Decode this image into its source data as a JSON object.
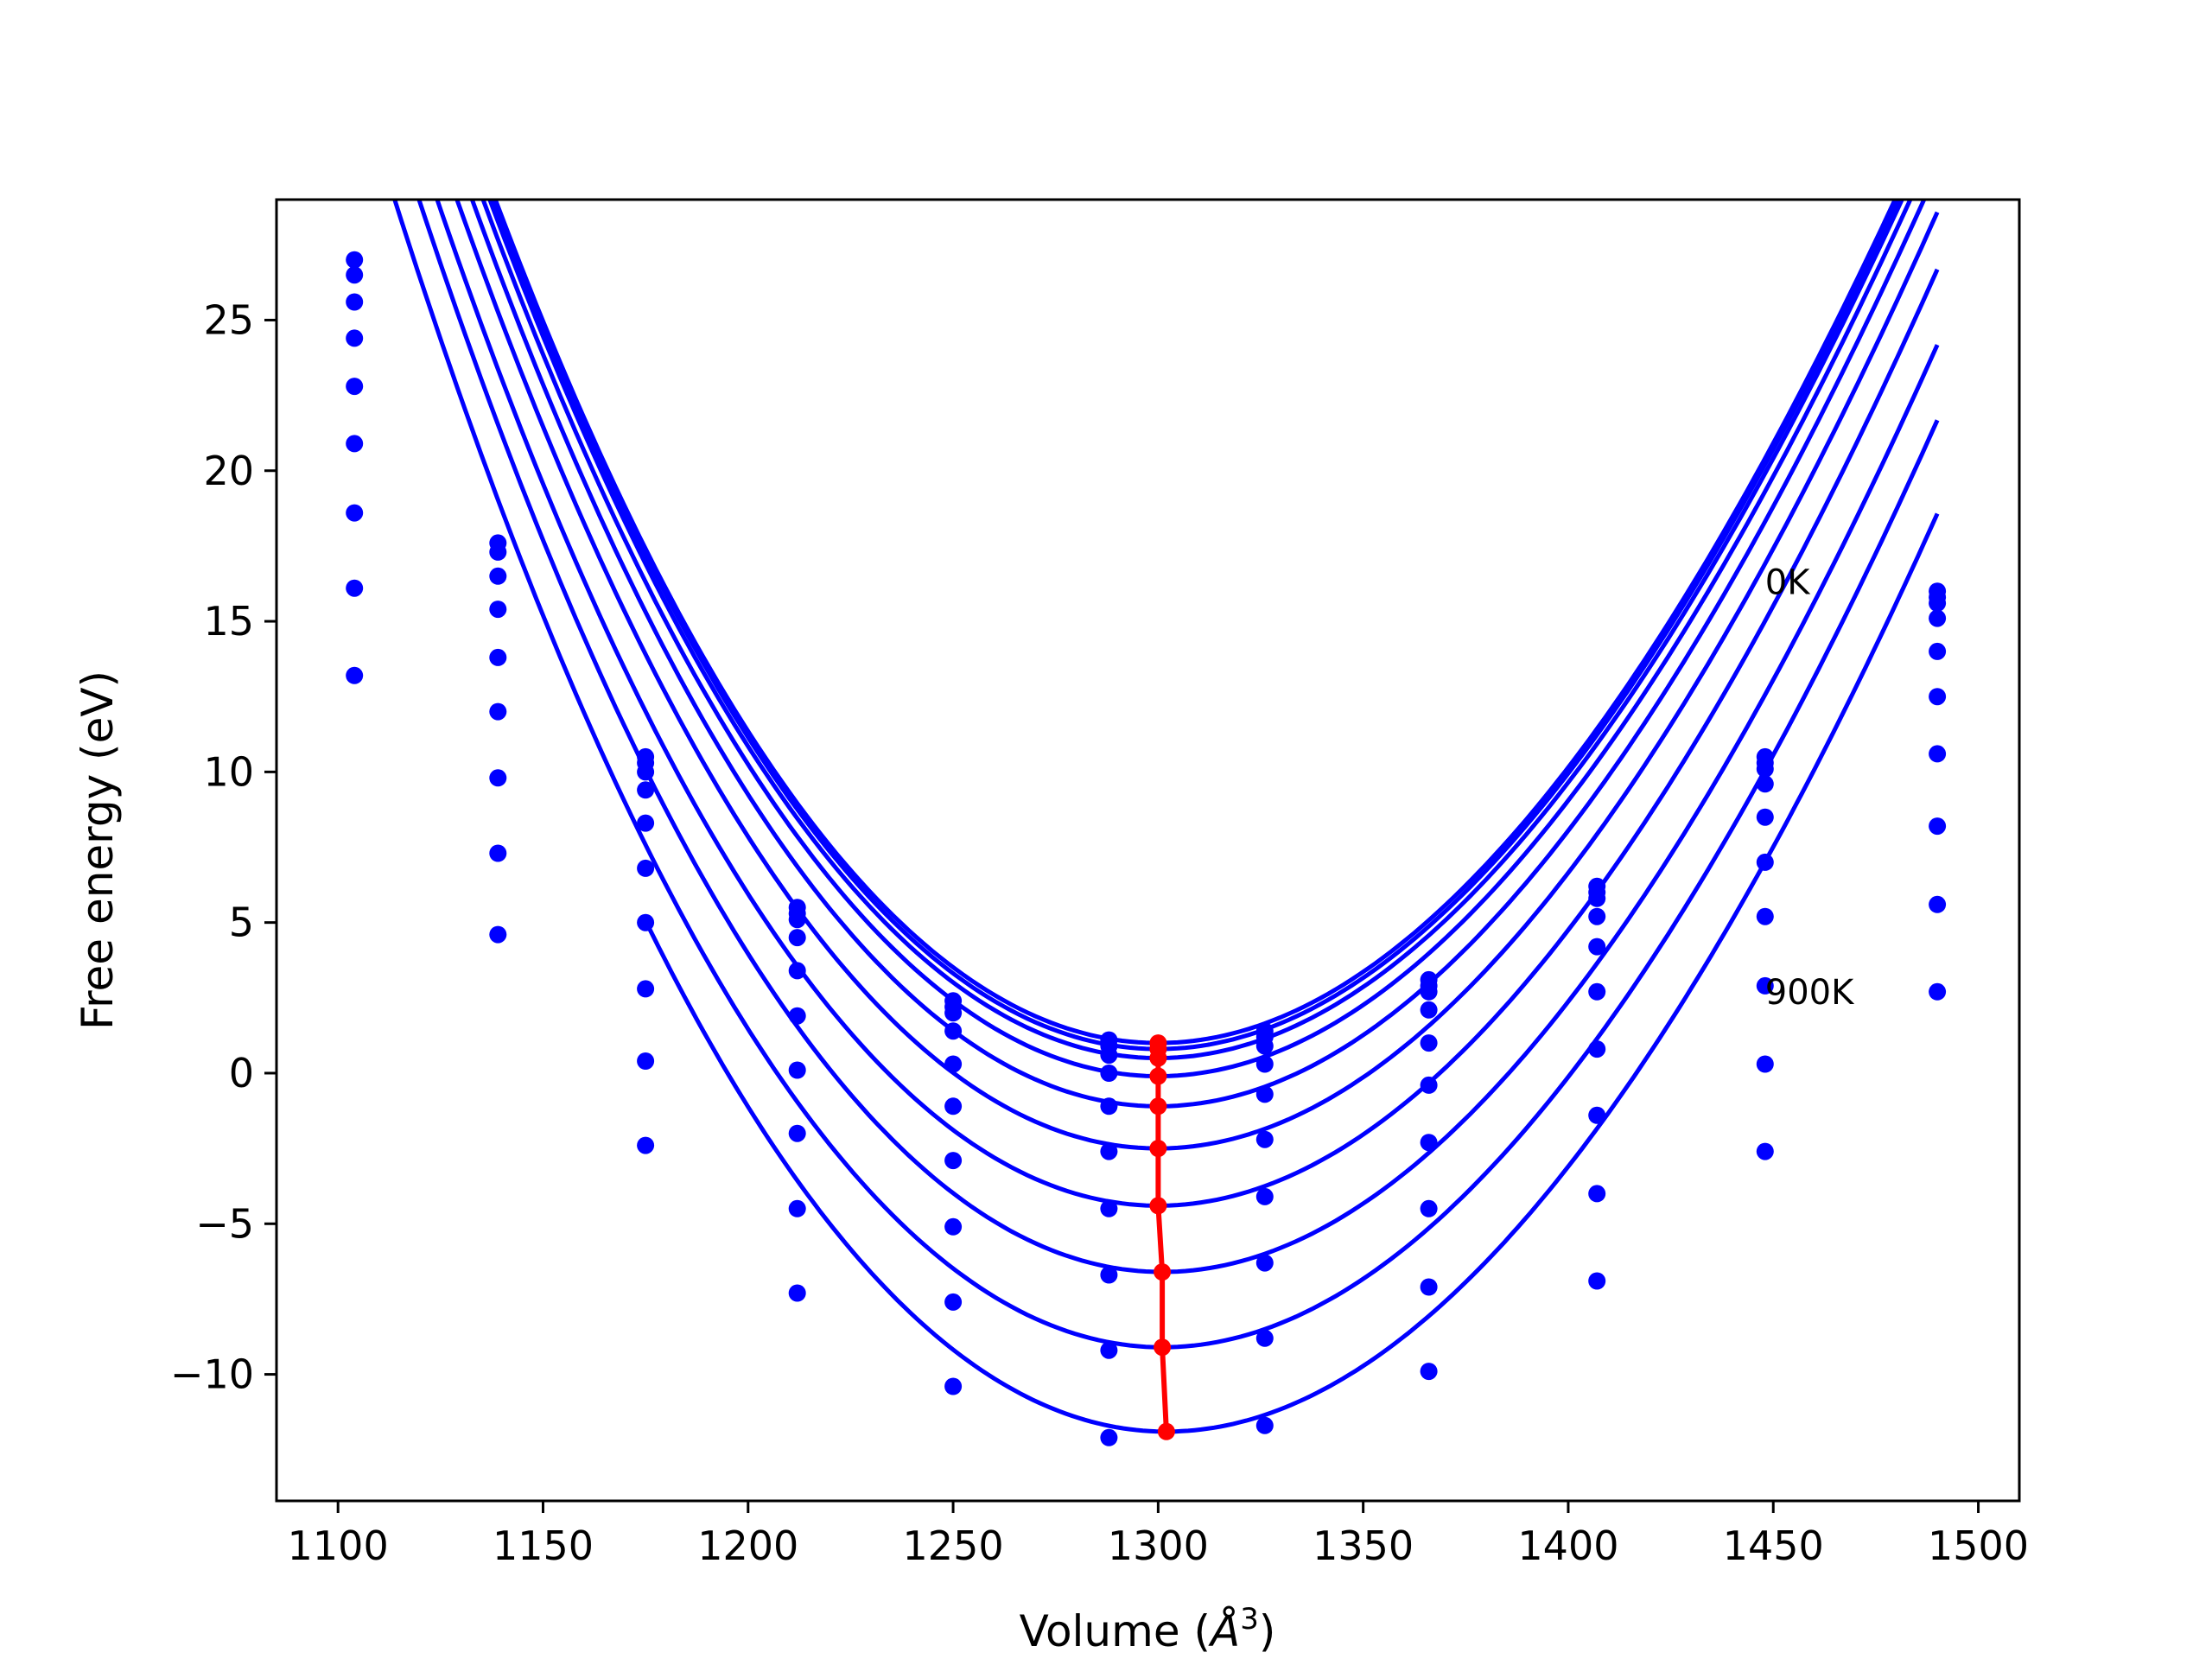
{
  "chart_data": {
    "type": "line",
    "title": "",
    "xlabel": "Volume (",
    "xlabel_symbol": "Å",
    "xlabel_sup": "3",
    "xlabel_close": ")",
    "ylabel": "Free energy (eV)",
    "xlim": [
      1085,
      1510
    ],
    "ylim": [
      -14.2,
      29.0
    ],
    "xticks": [
      1100,
      1150,
      1200,
      1250,
      1300,
      1350,
      1400,
      1450,
      1500
    ],
    "xtick_labels": [
      "1100",
      "1150",
      "1200",
      "1250",
      "1300",
      "1350",
      "1400",
      "1450",
      "1500"
    ],
    "yticks": [
      -10,
      -5,
      0,
      5,
      10,
      15,
      20,
      25
    ],
    "ytick_labels": [
      "−10",
      "−5",
      "0",
      "5",
      "10",
      "15",
      "20",
      "25"
    ],
    "grid": false,
    "legend": "none",
    "colors": {
      "curves": "#0000ff",
      "minimum_line": "#ff0000",
      "frame": "#000000"
    },
    "volumes": [
      1104,
      1139,
      1175,
      1212,
      1250,
      1288,
      1326,
      1366,
      1407,
      1448,
      1490
    ],
    "series": [
      {
        "fit_min_v": 1300,
        "fit_min_f": 1.0,
        "fit_a": 0.000975,
        "values": [
          27.0,
          17.6,
          10.5,
          5.5,
          2.4,
          1.1,
          1.4,
          3.1,
          6.2,
          10.5,
          16.0
        ]
      },
      {
        "fit_min_v": 1300,
        "fit_min_f": 0.8,
        "fit_a": 0.000975,
        "values": [
          26.5,
          17.3,
          10.3,
          5.3,
          2.2,
          0.9,
          1.2,
          2.9,
          6.0,
          10.3,
          15.8
        ]
      },
      {
        "fit_min_v": 1300,
        "fit_min_f": 0.5,
        "fit_a": 0.000975,
        "values": [
          25.6,
          16.5,
          10.0,
          5.1,
          2.0,
          0.6,
          0.9,
          2.7,
          5.8,
          10.1,
          15.6
        ]
      },
      {
        "fit_min_v": 1300,
        "fit_min_f": -0.1,
        "fit_a": 0.000975,
        "values": [
          24.4,
          15.4,
          9.4,
          4.5,
          1.4,
          0.0,
          0.3,
          2.1,
          5.2,
          9.6,
          15.1
        ]
      },
      {
        "fit_min_v": 1300,
        "fit_min_f": -1.1,
        "fit_a": 0.000975,
        "values": [
          22.8,
          13.8,
          8.3,
          3.4,
          0.3,
          -1.1,
          -0.7,
          1.0,
          4.2,
          8.5,
          14.0
        ]
      },
      {
        "fit_min_v": 1300,
        "fit_min_f": -2.5,
        "fit_a": 0.000975,
        "values": [
          20.9,
          12.0,
          6.8,
          1.9,
          -1.1,
          -2.6,
          -2.2,
          -0.4,
          2.7,
          7.0,
          12.5
        ]
      },
      {
        "fit_min_v": 1300,
        "fit_min_f": -4.4,
        "fit_a": 0.000975,
        "values": [
          18.6,
          9.8,
          5.0,
          0.1,
          -2.9,
          -4.5,
          -4.1,
          -2.3,
          0.8,
          5.2,
          10.6
        ]
      },
      {
        "fit_min_v": 1301,
        "fit_min_f": -6.6,
        "fit_a": 0.000975,
        "values": [
          16.1,
          7.3,
          2.8,
          -2.0,
          -5.1,
          -6.7,
          -6.3,
          -4.5,
          -1.4,
          2.9,
          8.2
        ]
      },
      {
        "fit_min_v": 1301,
        "fit_min_f": -9.1,
        "fit_a": 0.000975,
        "values": [
          13.2,
          4.6,
          0.4,
          -4.5,
          -7.6,
          -9.2,
          -8.8,
          -7.1,
          -4.0,
          0.3,
          5.6
        ]
      },
      {
        "fit_min_v": 1302,
        "fit_min_f": -11.9,
        "fit_a": 0.000975,
        "values": [
          null,
          null,
          -2.4,
          -7.3,
          -10.4,
          -12.1,
          -11.7,
          -9.9,
          -6.9,
          -2.6,
          2.7
        ]
      }
    ],
    "minimum_line": {
      "x": [
        1300,
        1300,
        1300,
        1300,
        1300,
        1300,
        1300,
        1301,
        1301,
        1302
      ],
      "y": [
        1.0,
        0.8,
        0.5,
        -0.1,
        -1.1,
        -2.5,
        -4.4,
        -6.6,
        -9.1,
        -11.9
      ]
    },
    "annotations": [
      {
        "text": "0K",
        "x": 1448,
        "y": 16.3
      },
      {
        "text": "900K",
        "x": 1448,
        "y": 2.7
      }
    ]
  }
}
